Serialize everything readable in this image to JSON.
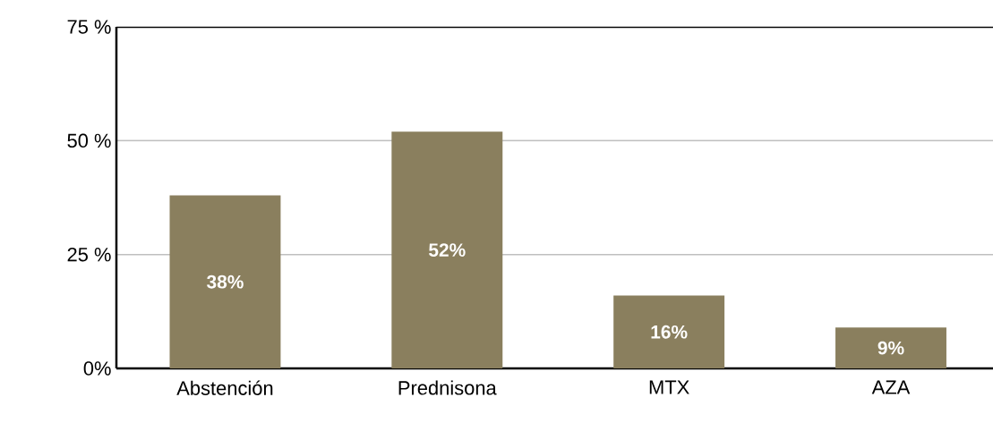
{
  "chart_data": {
    "type": "bar",
    "categories": [
      "Abstención",
      "Prednisona",
      "MTX",
      "AZA"
    ],
    "values": [
      38,
      52,
      16,
      9
    ],
    "value_labels": [
      "38%",
      "52%",
      "16%",
      "9%"
    ],
    "color": "#8a7f5e",
    "ylim": [
      0,
      75
    ],
    "yticks": [
      {
        "value": 0,
        "label": "0%"
      },
      {
        "value": 25,
        "label": "25 %"
      },
      {
        "value": 50,
        "label": "50 %"
      },
      {
        "value": 75,
        "label": "75 %"
      }
    ],
    "grid": "y"
  }
}
